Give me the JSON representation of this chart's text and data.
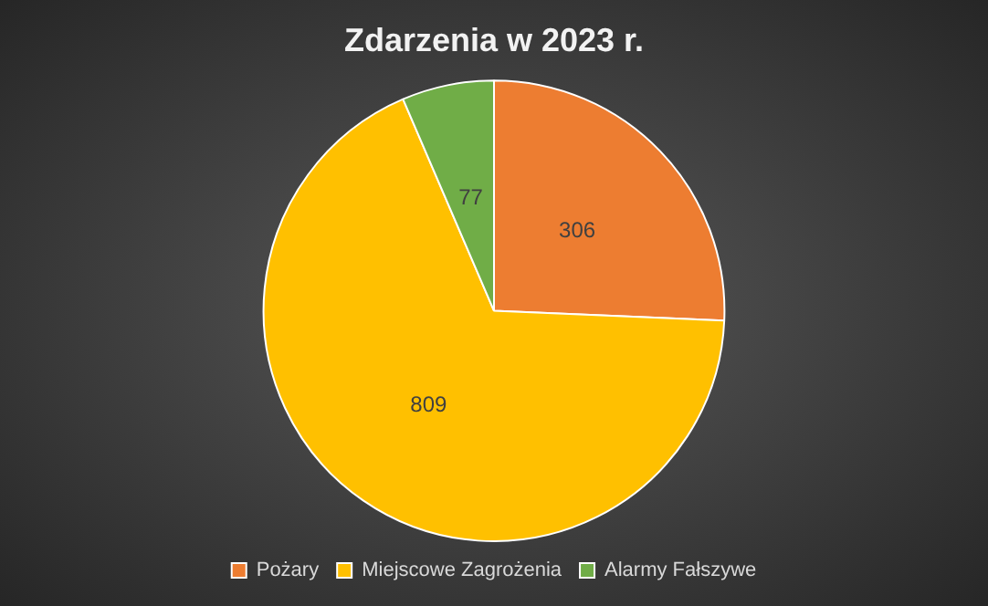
{
  "chart_data": {
    "type": "pie",
    "title": "Zdarzenia w 2023 r.",
    "categories": [
      "Pożary",
      "Miejscowe Zagrożenia",
      "Alarmy Fałszywe"
    ],
    "values": [
      306,
      809,
      77
    ],
    "colors": [
      "#ed7d31",
      "#ffc000",
      "#70ad47"
    ],
    "data_labels": true,
    "legend": "bottom"
  }
}
